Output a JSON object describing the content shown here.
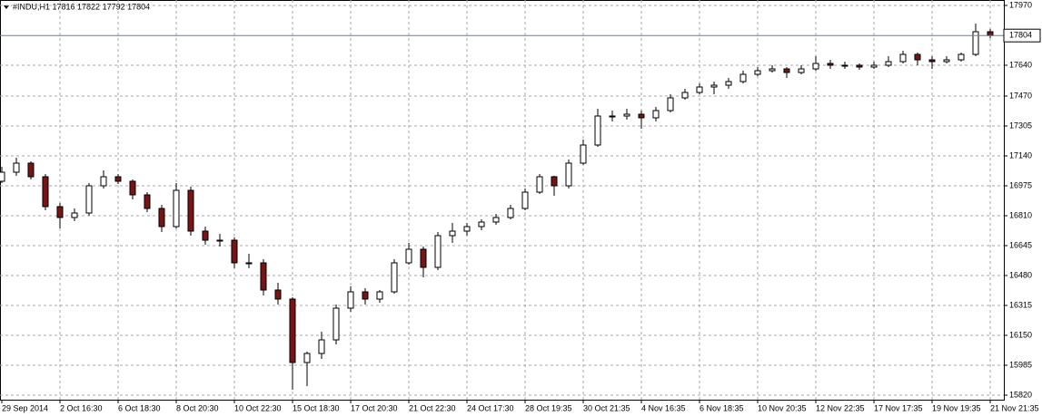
{
  "chart_data": {
    "type": "candlestick",
    "title": "#INDU,H1  17816 17822 17792 17804",
    "categories": [
      "29 Sep 2014",
      null,
      null,
      null,
      "2 Oct 16:30",
      null,
      null,
      null,
      "6 Oct 18:30",
      null,
      null,
      null,
      "8 Oct 20:30",
      null,
      null,
      null,
      "10 Oct 22:30",
      null,
      null,
      null,
      "15 Oct 18:30",
      null,
      null,
      null,
      "17 Oct 20:30",
      null,
      null,
      null,
      "21 Oct 22:30",
      null,
      null,
      null,
      "24 Oct 17:30",
      null,
      null,
      null,
      "28 Oct 19:35",
      null,
      null,
      null,
      "30 Oct 21:35",
      null,
      null,
      null,
      "4 Nov 16:35",
      null,
      null,
      null,
      "6 Nov 18:35",
      null,
      null,
      null,
      "10 Nov 20:35",
      null,
      null,
      null,
      "12 Nov 22:35",
      null,
      null,
      null,
      "17 Nov 17:35",
      null,
      null,
      null,
      "19 Nov 19:35",
      null,
      null,
      null,
      "21 Nov 21:35"
    ],
    "open": [
      17000,
      17050,
      17100,
      17025,
      16860,
      16800,
      16825,
      16975,
      17025,
      17000,
      16925,
      16850,
      16750,
      16950,
      16725,
      16675,
      16675,
      16550,
      16550,
      16400,
      16350,
      16000,
      16050,
      16125,
      16300,
      16390,
      16350,
      16390,
      16550,
      16625,
      16525,
      16700,
      16725,
      16750,
      16775,
      16800,
      16850,
      16940,
      17025,
      16975,
      17100,
      17200,
      17360,
      17360,
      17370,
      17350,
      17390,
      17460,
      17490,
      17520,
      17530,
      17550,
      17590,
      17610,
      17620,
      17600,
      17620,
      17650,
      17640,
      17640,
      17630,
      17640,
      17660,
      17700,
      17670,
      17660,
      17670,
      17700,
      17825
    ],
    "high": [
      17080,
      17130,
      17110,
      17040,
      16880,
      16850,
      16990,
      17060,
      17040,
      17010,
      16940,
      16870,
      16990,
      16970,
      16750,
      16710,
      16690,
      16600,
      16570,
      16440,
      16360,
      16060,
      16170,
      16320,
      16420,
      16410,
      16400,
      16570,
      16660,
      16640,
      16720,
      16770,
      16770,
      16790,
      16820,
      16870,
      16960,
      17040,
      17030,
      17120,
      17230,
      17400,
      17390,
      17400,
      17390,
      17410,
      17480,
      17510,
      17540,
      17550,
      17570,
      17610,
      17630,
      17640,
      17630,
      17640,
      17690,
      17670,
      17660,
      17650,
      17660,
      17690,
      17720,
      17710,
      17690,
      17690,
      17710,
      17870,
      17840
    ],
    "low": [
      16990,
      17030,
      17010,
      16840,
      16740,
      16780,
      16810,
      16960,
      16985,
      16900,
      16830,
      16720,
      16740,
      16700,
      16650,
      16640,
      16520,
      16520,
      16370,
      16320,
      15850,
      15870,
      16020,
      16100,
      16280,
      16320,
      16330,
      16380,
      16540,
      16470,
      16510,
      16660,
      16700,
      16730,
      16760,
      16790,
      16840,
      16930,
      16920,
      16960,
      17090,
      17190,
      17330,
      17340,
      17290,
      17330,
      17380,
      17450,
      17480,
      17480,
      17510,
      17540,
      17580,
      17600,
      17570,
      17590,
      17610,
      17620,
      17620,
      17615,
      17620,
      17630,
      17650,
      17640,
      17620,
      17650,
      17660,
      17690,
      17790
    ],
    "close": [
      17050,
      17100,
      17025,
      16860,
      16800,
      16825,
      16975,
      17025,
      17000,
      16925,
      16850,
      16750,
      16950,
      16725,
      16675,
      16675,
      16550,
      16550,
      16400,
      16350,
      16000,
      16050,
      16125,
      16300,
      16390,
      16350,
      16390,
      16550,
      16625,
      16525,
      16700,
      16725,
      16750,
      16775,
      16800,
      16850,
      16940,
      17025,
      16975,
      17100,
      17200,
      17360,
      17360,
      17370,
      17350,
      17390,
      17460,
      17490,
      17520,
      17530,
      17550,
      17590,
      17610,
      17620,
      17600,
      17620,
      17650,
      17640,
      17640,
      17630,
      17640,
      17660,
      17700,
      17670,
      17660,
      17670,
      17700,
      17825,
      17804
    ],
    "up_color": "#ffffff",
    "down_color": "#7a1414",
    "wick_color": "#000000",
    "last_price": 17804,
    "ylim": [
      15795,
      18000
    ],
    "yticks": [
      15820,
      15985,
      16150,
      16315,
      16480,
      16645,
      16810,
      16975,
      17140,
      17305,
      17470,
      17640,
      17970
    ],
    "grid": true
  }
}
